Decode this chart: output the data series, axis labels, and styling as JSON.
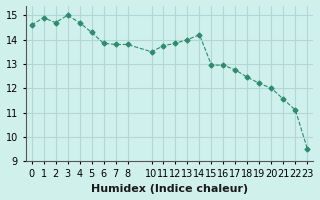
{
  "x": [
    0,
    1,
    2,
    3,
    4,
    5,
    6,
    7,
    8,
    10,
    11,
    12,
    13,
    14,
    15,
    16,
    17,
    18,
    19,
    20,
    21,
    22,
    23
  ],
  "y": [
    14.6,
    14.9,
    14.7,
    15.0,
    14.7,
    14.3,
    13.85,
    13.8,
    13.8,
    13.5,
    13.75,
    13.85,
    14.0,
    14.2,
    12.95,
    12.95,
    12.75,
    12.45,
    12.2,
    12.0,
    11.55,
    11.1,
    9.5
  ],
  "line_color": "#2e8b70",
  "marker": "D",
  "marker_size": 2.5,
  "bg_color": "#d0f0ec",
  "grid_color": "#b0d8d4",
  "xlabel": "Humidex (Indice chaleur)",
  "ylabel": "",
  "xlim": [
    -0.5,
    23.5
  ],
  "ylim": [
    9,
    15.4
  ],
  "xticks": [
    0,
    1,
    2,
    3,
    4,
    5,
    6,
    7,
    8,
    10,
    11,
    12,
    13,
    14,
    15,
    16,
    17,
    18,
    19,
    20,
    21,
    22,
    23
  ],
  "yticks": [
    9,
    10,
    11,
    12,
    13,
    14,
    15
  ],
  "tick_fontsize": 7,
  "label_fontsize": 8
}
